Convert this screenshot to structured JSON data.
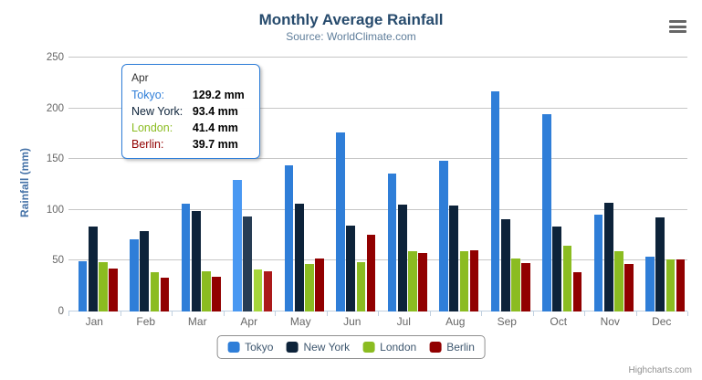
{
  "header": {
    "title": "Monthly Average Rainfall",
    "subtitle": "Source: WorldClimate.com"
  },
  "chart_data": {
    "type": "bar",
    "title": "Monthly Average Rainfall",
    "subtitle": "Source: WorldClimate.com",
    "categories": [
      "Jan",
      "Feb",
      "Mar",
      "Apr",
      "May",
      "Jun",
      "Jul",
      "Aug",
      "Sep",
      "Oct",
      "Nov",
      "Dec"
    ],
    "series": [
      {
        "name": "Tokyo",
        "color": "#2f7ed8",
        "hover_color": "#4998f2",
        "values": [
          49.9,
          71.5,
          106.4,
          129.2,
          144.0,
          176.0,
          135.6,
          148.5,
          216.4,
          194.1,
          95.6,
          54.4
        ]
      },
      {
        "name": "New York",
        "color": "#0d233a",
        "hover_color": "#273d54",
        "values": [
          83.6,
          78.8,
          98.5,
          93.4,
          106.0,
          84.5,
          105.0,
          104.3,
          91.2,
          83.5,
          106.6,
          92.3
        ]
      },
      {
        "name": "London",
        "color": "#8bbc21",
        "hover_color": "#a5d63b",
        "values": [
          48.9,
          38.8,
          39.3,
          41.4,
          47.0,
          48.3,
          59.0,
          59.6,
          52.4,
          65.2,
          59.3,
          51.2
        ]
      },
      {
        "name": "Berlin",
        "color": "#910000",
        "hover_color": "#ab1a1a",
        "values": [
          42.4,
          33.2,
          34.5,
          39.7,
          52.6,
          75.5,
          57.4,
          60.4,
          47.6,
          39.1,
          46.8,
          51.1
        ]
      }
    ],
    "xlabel": "",
    "ylabel": "Rainfall (mm)",
    "ylim": [
      0,
      250
    ],
    "yticks": [
      0,
      50,
      100,
      150,
      200,
      250
    ],
    "grid": true,
    "legend_position": "bottom",
    "hovered_category": "Apr",
    "value_suffix": "mm"
  },
  "tooltip": {
    "header": "Apr",
    "rows": [
      {
        "label": "Tokyo:",
        "value": "129.2 mm",
        "color": "#2f7ed8"
      },
      {
        "label": "New York:",
        "value": "93.4 mm",
        "color": "#0d233a"
      },
      {
        "label": "London:",
        "value": "41.4 mm",
        "color": "#8bbc21"
      },
      {
        "label": "Berlin:",
        "value": "39.7 mm",
        "color": "#910000"
      }
    ]
  },
  "legend": {
    "items": [
      {
        "label": "Tokyo",
        "color": "#2f7ed8"
      },
      {
        "label": "New York",
        "color": "#0d233a"
      },
      {
        "label": "London",
        "color": "#8bbc21"
      },
      {
        "label": "Berlin",
        "color": "#910000"
      }
    ]
  },
  "credits": "Highcharts.com"
}
